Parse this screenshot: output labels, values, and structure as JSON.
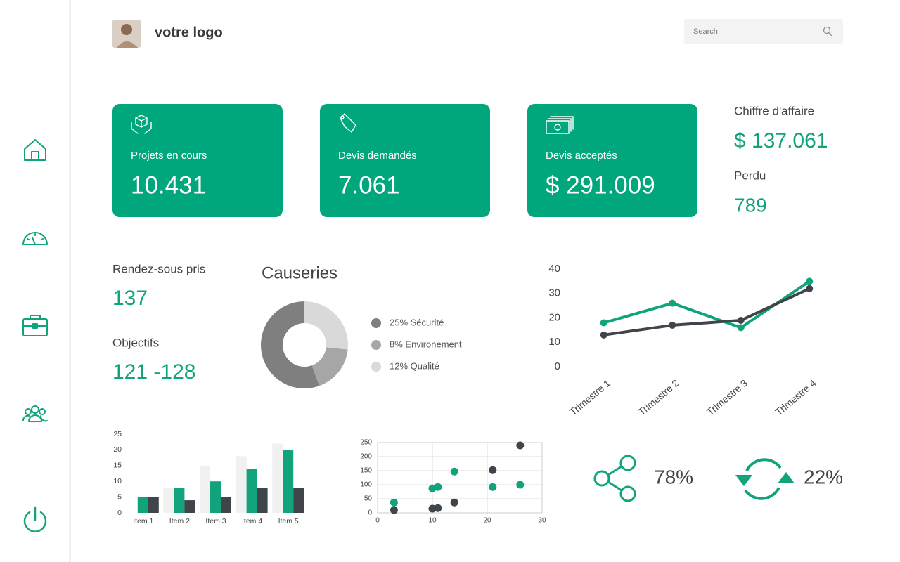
{
  "header": {
    "logo": "votre logo",
    "search": "Search"
  },
  "cards": [
    {
      "label": "Projets en cours",
      "value": "10.431"
    },
    {
      "label": "Devis demandés",
      "value": "7.061"
    },
    {
      "label": "Devis acceptés",
      "value": "$ 291.009"
    }
  ],
  "summary": [
    {
      "label": "Chiffre d'affaire",
      "value": "$ 137.061"
    },
    {
      "label": "Perdu",
      "value": "789"
    }
  ],
  "stats": [
    {
      "label": "Rendez-sous pris",
      "value": "137"
    },
    {
      "label": "Objectifs",
      "value": "121 -128"
    }
  ],
  "indicators": [
    "78%",
    "22%"
  ],
  "chart_data": [
    {
      "type": "pie",
      "title": "Causeries",
      "values": [
        25,
        8,
        12
      ],
      "value_labels": [
        "25% Sécurité",
        "8% Environement",
        "12% Qualité"
      ],
      "colors": [
        "#7f7f7f",
        "#a6a6a6",
        "#d9d9d9"
      ]
    },
    {
      "type": "line",
      "categories": [
        "Trimestre 1",
        "Trimestre 2",
        "Trimestre 3",
        "Trimestre 4"
      ],
      "series": [
        {
          "color": "#11a37c",
          "values": [
            18,
            26,
            16,
            35
          ]
        },
        {
          "color": "#3f454b",
          "values": [
            13,
            17,
            19,
            32
          ]
        }
      ],
      "ylim": [
        0,
        40
      ],
      "yticks": [
        0,
        10,
        20,
        30,
        40
      ]
    },
    {
      "type": "bar",
      "categories": [
        "Item 1",
        "Item 2",
        "Item 3",
        "Item 4",
        "Item 5"
      ],
      "series": [
        {
          "color": "#f1f1f1",
          "values": [
            null,
            8,
            15,
            18,
            22
          ]
        },
        {
          "color": "#11a37c",
          "values": [
            5,
            8,
            10,
            14,
            20
          ]
        },
        {
          "color": "#3f454b",
          "values": [
            5,
            4,
            5,
            8,
            8
          ]
        }
      ],
      "ylim": [
        0,
        25
      ],
      "yticks": [
        0,
        5,
        10,
        15,
        20,
        25
      ]
    },
    {
      "type": "scatter",
      "series": [
        {
          "color": "#3f454b",
          "x": [
            3,
            10,
            11,
            14,
            21,
            26
          ],
          "values": [
            10,
            15,
            17,
            37,
            152,
            240
          ]
        },
        {
          "color": "#11a37c",
          "x": [
            3,
            10,
            11,
            14,
            21,
            26
          ],
          "values": [
            37,
            87,
            92,
            147,
            92,
            100
          ]
        }
      ],
      "xlim": [
        0,
        30
      ],
      "xticks": [
        0,
        10,
        20,
        30
      ],
      "ylim": [
        0,
        250
      ],
      "yticks": [
        0,
        50,
        100,
        150,
        200,
        250
      ],
      "grid": true
    }
  ]
}
